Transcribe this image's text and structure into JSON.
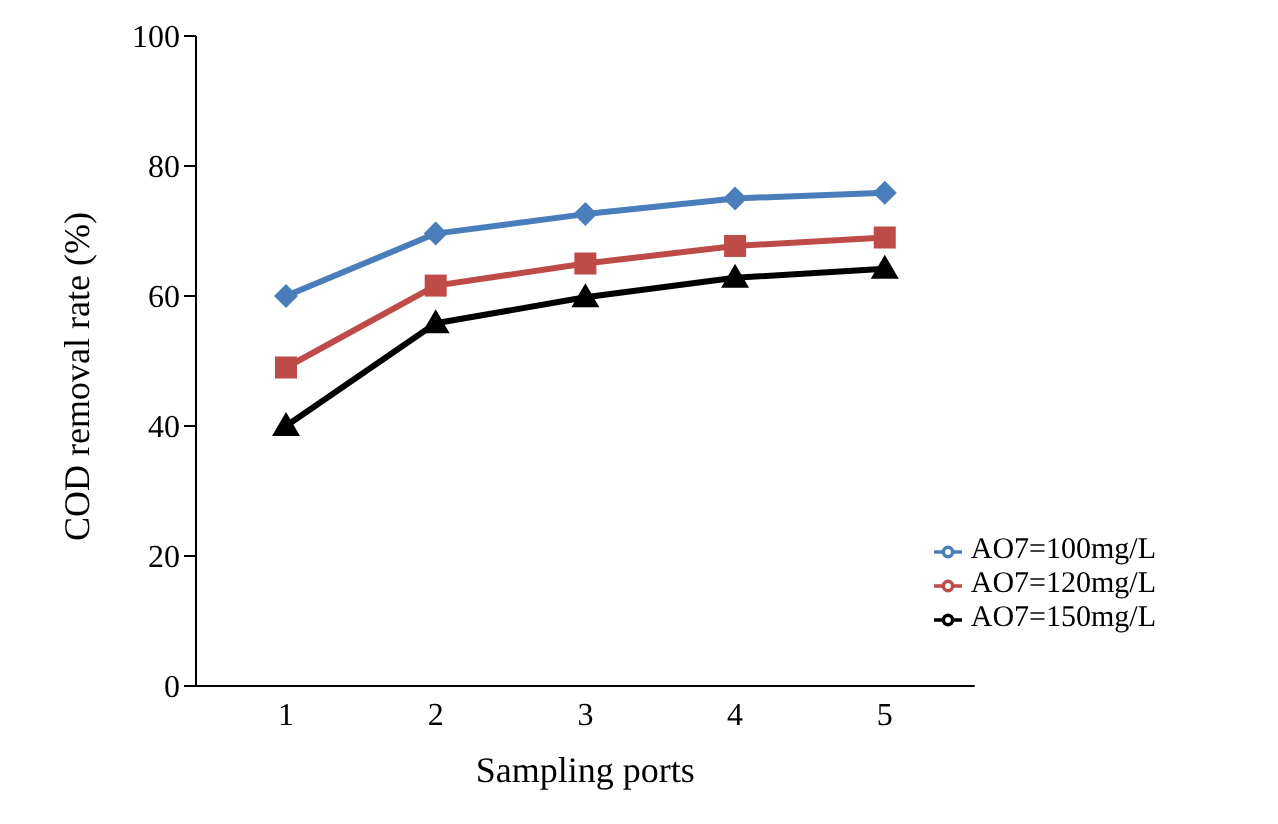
{
  "chart_data": {
    "type": "line",
    "xlabel": "Sampling ports",
    "ylabel": "COD removal rate (%)",
    "categories": [
      "1",
      "2",
      "3",
      "4",
      "5"
    ],
    "series": [
      {
        "name": "AO7=100mg/L",
        "color": "#4a7ebb",
        "marker": "diamond",
        "values": [
          60,
          69.6,
          72.6,
          75,
          75.9
        ]
      },
      {
        "name": "AO7=120mg/L",
        "color": "#be4b48",
        "marker": "square",
        "values": [
          49,
          61.6,
          65,
          67.7,
          69
        ]
      },
      {
        "name": "AO7=150mg/L",
        "color": "#000000",
        "marker": "triangle",
        "values": [
          40,
          55.8,
          59.8,
          62.8,
          64.2
        ]
      }
    ],
    "ylim": [
      0,
      100
    ],
    "yticks": [
      0,
      20,
      40,
      60,
      80,
      100
    ],
    "grid": false,
    "legend": "bottom right"
  }
}
